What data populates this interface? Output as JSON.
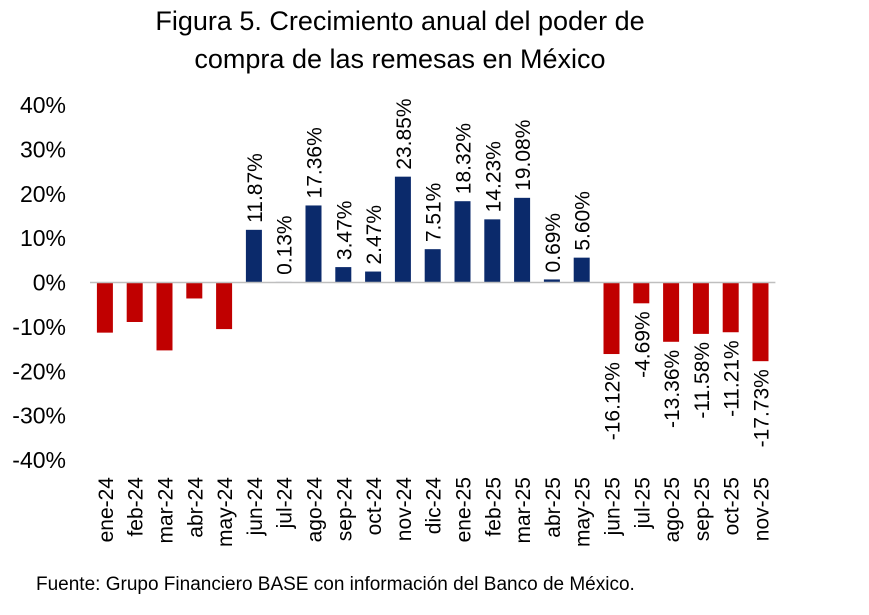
{
  "chart_data": {
    "type": "bar",
    "title_line1": "Figura 5. Crecimiento anual del poder de",
    "title_line2": "compra de las remesas en México",
    "xlabel": "",
    "ylabel": "",
    "ylim": [
      -40,
      40
    ],
    "yticks": [
      40,
      30,
      20,
      10,
      0,
      -10,
      -20,
      -30,
      -40
    ],
    "ytick_labels": [
      "40%",
      "30%",
      "20%",
      "10%",
      "0%",
      "-10%",
      "-20%",
      "-30%",
      "-40%"
    ],
    "categories": [
      "ene-24",
      "feb-24",
      "mar-24",
      "abr-24",
      "may-24",
      "jun-24",
      "jul-24",
      "ago-24",
      "sep-24",
      "oct-24",
      "nov-24",
      "dic-24",
      "ene-25",
      "feb-25",
      "mar-25",
      "abr-25",
      "may-25",
      "jun-25",
      "jul-25",
      "ago-25",
      "sep-25",
      "oct-25",
      "nov-25"
    ],
    "values": [
      -11.3,
      -8.9,
      -15.3,
      -3.6,
      -10.5,
      11.87,
      0.13,
      17.36,
      3.47,
      2.47,
      23.85,
      7.51,
      18.32,
      14.23,
      19.08,
      0.69,
      5.6,
      -16.12,
      -4.69,
      -13.36,
      -11.58,
      -11.21,
      -17.73
    ],
    "data_labels": [
      "",
      "",
      "",
      "",
      "",
      "11.87%",
      "0.13%",
      "17.36%",
      "3.47%",
      "2.47%",
      "23.85%",
      "7.51%",
      "18.32%",
      "14.23%",
      "19.08%",
      "0.69%",
      "5.60%",
      "-16.12%",
      "-4.69%",
      "-13.36%",
      "-11.58%",
      "-11.21%",
      "-17.73%"
    ],
    "colors": {
      "positive": "#0b2a6b",
      "negative": "#c00000",
      "axis": "#bfbfbf"
    },
    "grid": false,
    "legend": "none"
  },
  "source": "Fuente: Grupo Financiero BASE con información del Banco de México."
}
